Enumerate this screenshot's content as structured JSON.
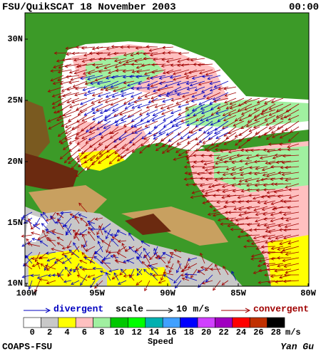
{
  "header": {
    "title": "FSU/QuikSCAT 18 November 2003",
    "time": "00:00"
  },
  "map": {
    "lat_labels": [
      "30N",
      "25N",
      "20N",
      "15N",
      "10N"
    ],
    "lon_labels": [
      "100W",
      "95W",
      "90W",
      "85W",
      "80W"
    ]
  },
  "legend": {
    "divergent": "divergent",
    "scale": "scale",
    "scale_value": "10 m/s",
    "convergent": "convergent"
  },
  "colorbar": {
    "labels": [
      "0",
      "2",
      "4",
      "6",
      "8",
      "10",
      "12",
      "14",
      "16",
      "18",
      "20",
      "22",
      "24",
      "26",
      "28"
    ],
    "colors": [
      "#ffffff",
      "#c8c8c8",
      "#ffff00",
      "#ffc0c0",
      "#a0f0a0",
      "#00c800",
      "#00ff00",
      "#00b0b0",
      "#40a0ff",
      "#0000ff",
      "#d040ff",
      "#a000c0",
      "#ff0000",
      "#c03000",
      "#000000"
    ],
    "unit": "m/s",
    "title": "Speed"
  },
  "footer": {
    "left": "COAPS-FSU",
    "right": "Yan Gu"
  }
}
